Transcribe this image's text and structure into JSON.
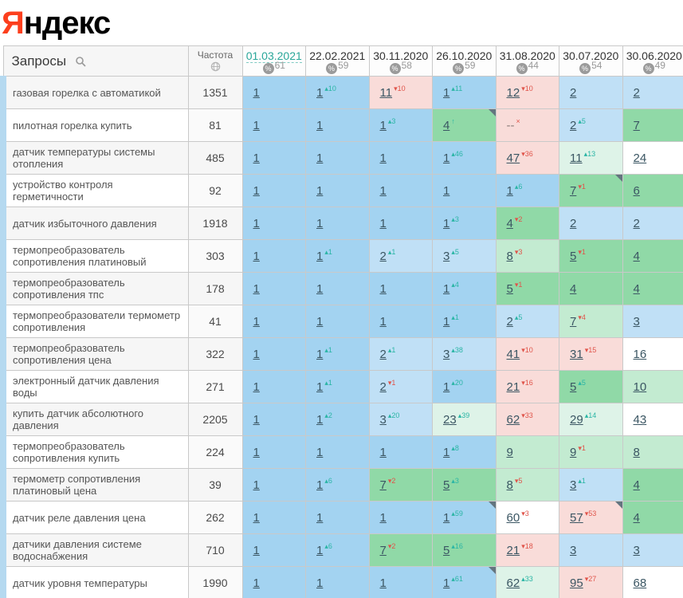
{
  "logo": {
    "first_letter": "Я",
    "rest": "ндекс"
  },
  "table": {
    "queries_header": "Запросы",
    "frequency_header": "Частота",
    "percent_symbol": "%",
    "dates": [
      {
        "label": "01.03.2021",
        "visibility": "61",
        "active": true
      },
      {
        "label": "22.02.2021",
        "visibility": "59",
        "active": false
      },
      {
        "label": "30.11.2020",
        "visibility": "58",
        "active": false
      },
      {
        "label": "26.10.2020",
        "visibility": "59",
        "active": false
      },
      {
        "label": "31.08.2020",
        "visibility": "44",
        "active": false
      },
      {
        "label": "30.07.2020",
        "visibility": "54",
        "active": false
      },
      {
        "label": "30.06.2020",
        "visibility": "49",
        "active": false
      }
    ],
    "rows": [
      {
        "query": "газовая горелка с автоматикой",
        "frequency": "1351",
        "cells": [
          {
            "p": "1",
            "bg": "b1"
          },
          {
            "p": "1",
            "d": "u",
            "v": "10",
            "bg": "b1"
          },
          {
            "p": "11",
            "d": "d",
            "v": "10",
            "bg": "p"
          },
          {
            "p": "1",
            "d": "u",
            "v": "11",
            "bg": "b1"
          },
          {
            "p": "12",
            "d": "d",
            "v": "10",
            "bg": "p"
          },
          {
            "p": "2",
            "bg": "b2"
          },
          {
            "p": "2",
            "bg": "b2"
          }
        ]
      },
      {
        "query": "пилотная горелка купить",
        "frequency": "81",
        "cells": [
          {
            "p": "1",
            "bg": "b1"
          },
          {
            "p": "1",
            "bg": "b1"
          },
          {
            "p": "1",
            "d": "u",
            "v": "3",
            "bg": "b1"
          },
          {
            "p": "4",
            "d": "i",
            "bg": "g1",
            "m": 1
          },
          {
            "p": "--",
            "d": "o",
            "bg": "p"
          },
          {
            "p": "2",
            "d": "u",
            "v": "5",
            "bg": "b2"
          },
          {
            "p": "7",
            "bg": "g1"
          }
        ]
      },
      {
        "query": "датчик температуры системы отопления",
        "frequency": "485",
        "cells": [
          {
            "p": "1",
            "bg": "b1"
          },
          {
            "p": "1",
            "bg": "b1"
          },
          {
            "p": "1",
            "bg": "b1"
          },
          {
            "p": "1",
            "d": "u",
            "v": "46",
            "bg": "b1"
          },
          {
            "p": "47",
            "d": "d",
            "v": "36",
            "bg": "p"
          },
          {
            "p": "11",
            "d": "u",
            "v": "13",
            "bg": "g3"
          },
          {
            "p": "24",
            "bg": "w"
          }
        ]
      },
      {
        "query": "устройство контроля герметичности",
        "frequency": "92",
        "cells": [
          {
            "p": "1",
            "bg": "b1"
          },
          {
            "p": "1",
            "bg": "b1"
          },
          {
            "p": "1",
            "bg": "b1"
          },
          {
            "p": "1",
            "bg": "b1"
          },
          {
            "p": "1",
            "d": "u",
            "v": "6",
            "bg": "b1"
          },
          {
            "p": "7",
            "d": "d",
            "v": "1",
            "bg": "g1",
            "m": 1
          },
          {
            "p": "6",
            "bg": "g1"
          }
        ]
      },
      {
        "query": "датчик избыточного давления",
        "frequency": "1918",
        "cells": [
          {
            "p": "1",
            "bg": "b1"
          },
          {
            "p": "1",
            "bg": "b1"
          },
          {
            "p": "1",
            "bg": "b1"
          },
          {
            "p": "1",
            "d": "u",
            "v": "3",
            "bg": "b1"
          },
          {
            "p": "4",
            "d": "d",
            "v": "2",
            "bg": "g1"
          },
          {
            "p": "2",
            "bg": "b2"
          },
          {
            "p": "2",
            "bg": "b2"
          }
        ]
      },
      {
        "query": "термопреобразователь сопротивления платиновый",
        "frequency": "303",
        "cells": [
          {
            "p": "1",
            "bg": "b1"
          },
          {
            "p": "1",
            "d": "u",
            "v": "1",
            "bg": "b1"
          },
          {
            "p": "2",
            "d": "u",
            "v": "1",
            "bg": "b2"
          },
          {
            "p": "3",
            "d": "u",
            "v": "5",
            "bg": "b2"
          },
          {
            "p": "8",
            "d": "d",
            "v": "3",
            "bg": "g2"
          },
          {
            "p": "5",
            "d": "d",
            "v": "1",
            "bg": "g1"
          },
          {
            "p": "4",
            "bg": "g1"
          }
        ]
      },
      {
        "query": "термопреобразователь сопротивления тпс",
        "frequency": "178",
        "cells": [
          {
            "p": "1",
            "bg": "b1"
          },
          {
            "p": "1",
            "bg": "b1"
          },
          {
            "p": "1",
            "bg": "b1"
          },
          {
            "p": "1",
            "d": "u",
            "v": "4",
            "bg": "b1"
          },
          {
            "p": "5",
            "d": "d",
            "v": "1",
            "bg": "g1"
          },
          {
            "p": "4",
            "bg": "g1"
          },
          {
            "p": "4",
            "bg": "g1"
          }
        ]
      },
      {
        "query": "термопреобразователи термометр сопротивления",
        "frequency": "41",
        "cells": [
          {
            "p": "1",
            "bg": "b1"
          },
          {
            "p": "1",
            "bg": "b1"
          },
          {
            "p": "1",
            "bg": "b1"
          },
          {
            "p": "1",
            "d": "u",
            "v": "1",
            "bg": "b1"
          },
          {
            "p": "2",
            "d": "u",
            "v": "5",
            "bg": "b2"
          },
          {
            "p": "7",
            "d": "d",
            "v": "4",
            "bg": "g2"
          },
          {
            "p": "3",
            "bg": "b2"
          }
        ]
      },
      {
        "query": "термопреобразователь сопротивления цена",
        "frequency": "322",
        "cells": [
          {
            "p": "1",
            "bg": "b1"
          },
          {
            "p": "1",
            "d": "u",
            "v": "1",
            "bg": "b1"
          },
          {
            "p": "2",
            "d": "u",
            "v": "1",
            "bg": "b2"
          },
          {
            "p": "3",
            "d": "u",
            "v": "38",
            "bg": "b2"
          },
          {
            "p": "41",
            "d": "d",
            "v": "10",
            "bg": "p"
          },
          {
            "p": "31",
            "d": "d",
            "v": "15",
            "bg": "p"
          },
          {
            "p": "16",
            "bg": "w"
          }
        ]
      },
      {
        "query": "электронный датчик давления воды",
        "frequency": "271",
        "cells": [
          {
            "p": "1",
            "bg": "b1"
          },
          {
            "p": "1",
            "d": "u",
            "v": "1",
            "bg": "b1"
          },
          {
            "p": "2",
            "d": "d",
            "v": "1",
            "bg": "b2"
          },
          {
            "p": "1",
            "d": "u",
            "v": "20",
            "bg": "b1"
          },
          {
            "p": "21",
            "d": "d",
            "v": "16",
            "bg": "p"
          },
          {
            "p": "5",
            "d": "u",
            "v": "5",
            "bg": "g1"
          },
          {
            "p": "10",
            "bg": "g2"
          }
        ]
      },
      {
        "query": "купить датчик абсолютного давления",
        "frequency": "2205",
        "cells": [
          {
            "p": "1",
            "bg": "b1"
          },
          {
            "p": "1",
            "d": "u",
            "v": "2",
            "bg": "b1"
          },
          {
            "p": "3",
            "d": "u",
            "v": "20",
            "bg": "b2"
          },
          {
            "p": "23",
            "d": "u",
            "v": "39",
            "bg": "g3"
          },
          {
            "p": "62",
            "d": "d",
            "v": "33",
            "bg": "p"
          },
          {
            "p": "29",
            "d": "u",
            "v": "14",
            "bg": "g3"
          },
          {
            "p": "43",
            "bg": "w"
          }
        ]
      },
      {
        "query": "термопреобразователь сопротивления купить",
        "frequency": "224",
        "cells": [
          {
            "p": "1",
            "bg": "b1"
          },
          {
            "p": "1",
            "bg": "b1"
          },
          {
            "p": "1",
            "bg": "b1"
          },
          {
            "p": "1",
            "d": "u",
            "v": "8",
            "bg": "b1"
          },
          {
            "p": "9",
            "bg": "g2"
          },
          {
            "p": "9",
            "d": "d",
            "v": "1",
            "bg": "g2"
          },
          {
            "p": "8",
            "bg": "g2"
          }
        ]
      },
      {
        "query": "термометр сопротивления платиновый цена",
        "frequency": "39",
        "cells": [
          {
            "p": "1",
            "bg": "b1"
          },
          {
            "p": "1",
            "d": "u",
            "v": "6",
            "bg": "b1"
          },
          {
            "p": "7",
            "d": "d",
            "v": "2",
            "bg": "g1"
          },
          {
            "p": "5",
            "d": "u",
            "v": "3",
            "bg": "g1"
          },
          {
            "p": "8",
            "d": "d",
            "v": "5",
            "bg": "g2"
          },
          {
            "p": "3",
            "d": "u",
            "v": "1",
            "bg": "b2"
          },
          {
            "p": "4",
            "bg": "g1"
          }
        ]
      },
      {
        "query": "датчик реле давления цена",
        "frequency": "262",
        "cells": [
          {
            "p": "1",
            "bg": "b1"
          },
          {
            "p": "1",
            "bg": "b1"
          },
          {
            "p": "1",
            "bg": "b1"
          },
          {
            "p": "1",
            "d": "u",
            "v": "59",
            "bg": "b1",
            "m": 1
          },
          {
            "p": "60",
            "d": "d",
            "v": "3",
            "bg": "w"
          },
          {
            "p": "57",
            "d": "d",
            "v": "53",
            "bg": "p",
            "m": 1
          },
          {
            "p": "4",
            "bg": "g1"
          }
        ]
      },
      {
        "query": "датчики давления системе водоснабжения",
        "frequency": "710",
        "cells": [
          {
            "p": "1",
            "bg": "b1"
          },
          {
            "p": "1",
            "d": "u",
            "v": "6",
            "bg": "b1"
          },
          {
            "p": "7",
            "d": "d",
            "v": "2",
            "bg": "g1"
          },
          {
            "p": "5",
            "d": "u",
            "v": "16",
            "bg": "g1"
          },
          {
            "p": "21",
            "d": "d",
            "v": "18",
            "bg": "p"
          },
          {
            "p": "3",
            "bg": "b2"
          },
          {
            "p": "3",
            "bg": "b2"
          }
        ]
      },
      {
        "query": "датчик уровня температуры",
        "frequency": "1990",
        "cells": [
          {
            "p": "1",
            "bg": "b1"
          },
          {
            "p": "1",
            "bg": "b1"
          },
          {
            "p": "1",
            "bg": "b1"
          },
          {
            "p": "1",
            "d": "u",
            "v": "61",
            "bg": "b1",
            "m": 1
          },
          {
            "p": "62",
            "d": "u",
            "v": "33",
            "bg": "g3"
          },
          {
            "p": "95",
            "d": "d",
            "v": "27",
            "bg": "p"
          },
          {
            "p": "68",
            "bg": "w"
          }
        ]
      }
    ]
  },
  "glyphs": {
    "up": "▴",
    "down": "▾",
    "in": "↑",
    "out": "×"
  },
  "colors": {
    "bg": {
      "b1": "#a3d3f1",
      "b2": "#c0e0f6",
      "g1": "#90d9a7",
      "g2": "#c3ebd1",
      "g3": "#def3e8",
      "w": "#ffffff",
      "p": "#f9dcd9"
    },
    "change_up": "#2ab5a5",
    "change_down": "#e0544a",
    "active_date": "#2aa79a",
    "logo_red": "#fc3f1d"
  }
}
